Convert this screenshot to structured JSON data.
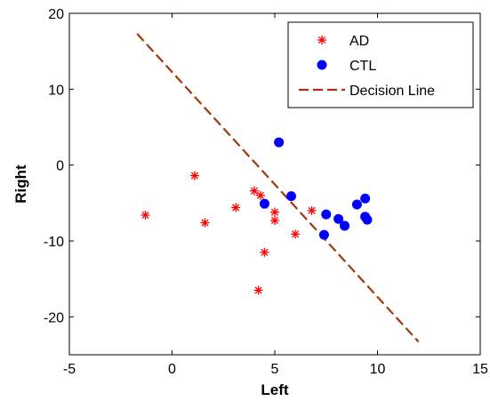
{
  "chart_data": {
    "type": "scatter",
    "xlabel": "Left",
    "ylabel": "Right",
    "xlim": [
      -5,
      15
    ],
    "ylim": [
      -25,
      20
    ],
    "xticks": [
      -5,
      0,
      5,
      10,
      15
    ],
    "yticks": [
      -20,
      -10,
      0,
      10,
      20
    ],
    "grid": false,
    "legend_position": "top-right",
    "series": [
      {
        "name": "AD",
        "marker": "asterisk",
        "color": "#ff0000",
        "points": [
          [
            -1.3,
            -6.6
          ],
          [
            1.1,
            -1.4
          ],
          [
            1.6,
            -7.6
          ],
          [
            3.1,
            -5.6
          ],
          [
            4.0,
            -3.4
          ],
          [
            4.3,
            -4.0
          ],
          [
            4.5,
            -11.5
          ],
          [
            4.2,
            -16.5
          ],
          [
            5.0,
            -6.2
          ],
          [
            5.0,
            -7.3
          ],
          [
            6.0,
            -9.1
          ],
          [
            6.8,
            -6.0
          ]
        ]
      },
      {
        "name": "CTL",
        "marker": "circle",
        "color": "#0000ff",
        "points": [
          [
            5.2,
            3.0
          ],
          [
            5.8,
            -4.1
          ],
          [
            4.5,
            -5.1
          ],
          [
            7.5,
            -6.5
          ],
          [
            7.4,
            -9.2
          ],
          [
            8.1,
            -7.1
          ],
          [
            8.4,
            -8.0
          ],
          [
            9.0,
            -5.2
          ],
          [
            9.4,
            -4.4
          ],
          [
            9.4,
            -6.8
          ],
          [
            9.5,
            -7.2
          ]
        ]
      },
      {
        "name": "Decision Line",
        "style": "dashed",
        "color": "#a0380c",
        "points": [
          [
            -1.7,
            17.3
          ],
          [
            12.0,
            -23.3
          ]
        ]
      }
    ]
  }
}
